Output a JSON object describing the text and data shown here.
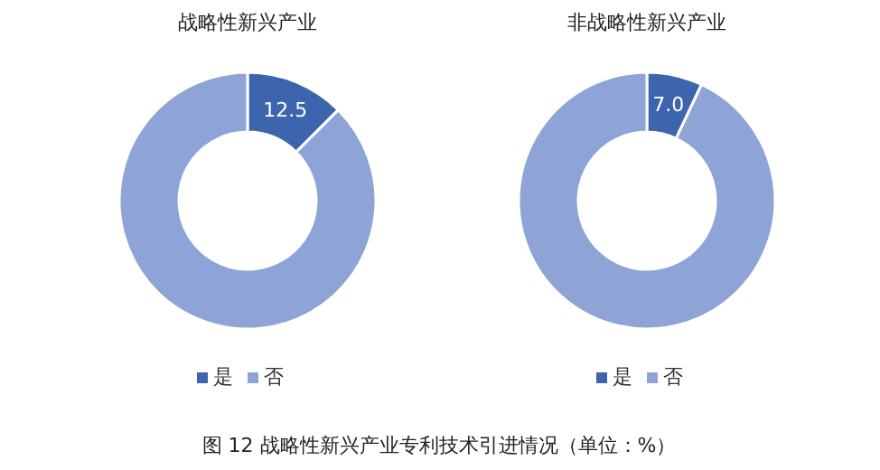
{
  "chart_data": [
    {
      "type": "donut",
      "title": "战略性新兴产业",
      "categories": [
        "是",
        "否"
      ],
      "values": [
        12.5,
        87.5
      ],
      "colors": [
        "#3d65ae",
        "#8fa4d6"
      ],
      "value_labels": [
        "12.5",
        null
      ],
      "legend": "bottom",
      "annotations": [
        "图 12  战略性新兴产业专利技术引进情况（单位：%）"
      ]
    },
    {
      "type": "donut",
      "title": "非战略性新兴产业",
      "categories": [
        "是",
        "否"
      ],
      "values": [
        7.0,
        93.0
      ],
      "colors": [
        "#3d65ae",
        "#8fa4d6"
      ],
      "value_labels": [
        "7.0",
        null
      ],
      "legend": "bottom"
    }
  ]
}
